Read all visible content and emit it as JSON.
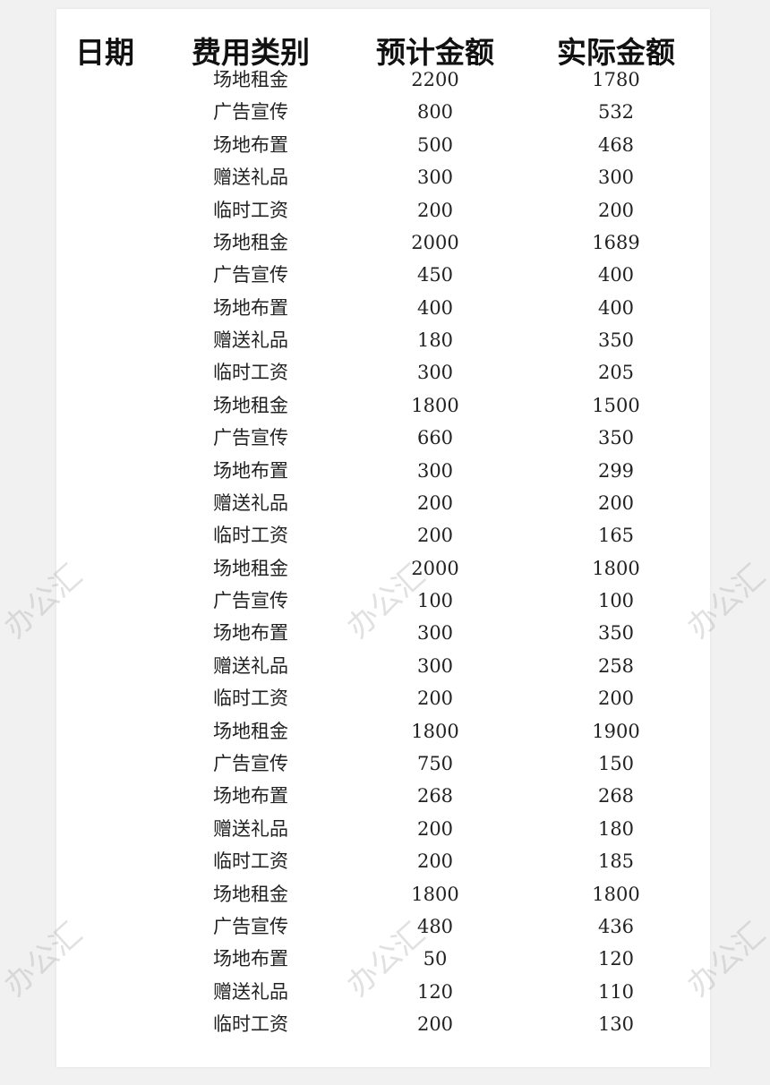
{
  "table": {
    "headers": [
      "日期",
      "费用类别",
      "预计金额",
      "实际金额"
    ],
    "rows": [
      {
        "date": "",
        "category": "场地租金",
        "estimated": "2200",
        "actual": "1780"
      },
      {
        "date": "",
        "category": "广告宣传",
        "estimated": "800",
        "actual": "532"
      },
      {
        "date": "",
        "category": "场地布置",
        "estimated": "500",
        "actual": "468"
      },
      {
        "date": "",
        "category": "赠送礼品",
        "estimated": "300",
        "actual": "300"
      },
      {
        "date": "",
        "category": "临时工资",
        "estimated": "200",
        "actual": "200"
      },
      {
        "date": "",
        "category": "场地租金",
        "estimated": "2000",
        "actual": "1689"
      },
      {
        "date": "",
        "category": "广告宣传",
        "estimated": "450",
        "actual": "400"
      },
      {
        "date": "",
        "category": "场地布置",
        "estimated": "400",
        "actual": "400"
      },
      {
        "date": "",
        "category": "赠送礼品",
        "estimated": "180",
        "actual": "350"
      },
      {
        "date": "",
        "category": "临时工资",
        "estimated": "300",
        "actual": "205"
      },
      {
        "date": "",
        "category": "场地租金",
        "estimated": "1800",
        "actual": "1500"
      },
      {
        "date": "",
        "category": "广告宣传",
        "estimated": "660",
        "actual": "350"
      },
      {
        "date": "",
        "category": "场地布置",
        "estimated": "300",
        "actual": "299"
      },
      {
        "date": "",
        "category": "赠送礼品",
        "estimated": "200",
        "actual": "200"
      },
      {
        "date": "",
        "category": "临时工资",
        "estimated": "200",
        "actual": "165"
      },
      {
        "date": "",
        "category": "场地租金",
        "estimated": "2000",
        "actual": "1800"
      },
      {
        "date": "",
        "category": "广告宣传",
        "estimated": "100",
        "actual": "100"
      },
      {
        "date": "",
        "category": "场地布置",
        "estimated": "300",
        "actual": "350"
      },
      {
        "date": "",
        "category": "赠送礼品",
        "estimated": "300",
        "actual": "258"
      },
      {
        "date": "",
        "category": "临时工资",
        "estimated": "200",
        "actual": "200"
      },
      {
        "date": "",
        "category": "场地租金",
        "estimated": "1800",
        "actual": "1900"
      },
      {
        "date": "",
        "category": "广告宣传",
        "estimated": "750",
        "actual": "150"
      },
      {
        "date": "",
        "category": "场地布置",
        "estimated": "268",
        "actual": "268"
      },
      {
        "date": "",
        "category": "赠送礼品",
        "estimated": "200",
        "actual": "180"
      },
      {
        "date": "",
        "category": "临时工资",
        "estimated": "200",
        "actual": "185"
      },
      {
        "date": "",
        "category": "场地租金",
        "estimated": "1800",
        "actual": "1800"
      },
      {
        "date": "",
        "category": "广告宣传",
        "estimated": "480",
        "actual": "436"
      },
      {
        "date": "",
        "category": "场地布置",
        "estimated": "50",
        "actual": "120"
      },
      {
        "date": "",
        "category": "赠送礼品",
        "estimated": "120",
        "actual": "110"
      },
      {
        "date": "",
        "category": "临时工资",
        "estimated": "200",
        "actual": "130"
      }
    ]
  },
  "watermark": "办公汇"
}
